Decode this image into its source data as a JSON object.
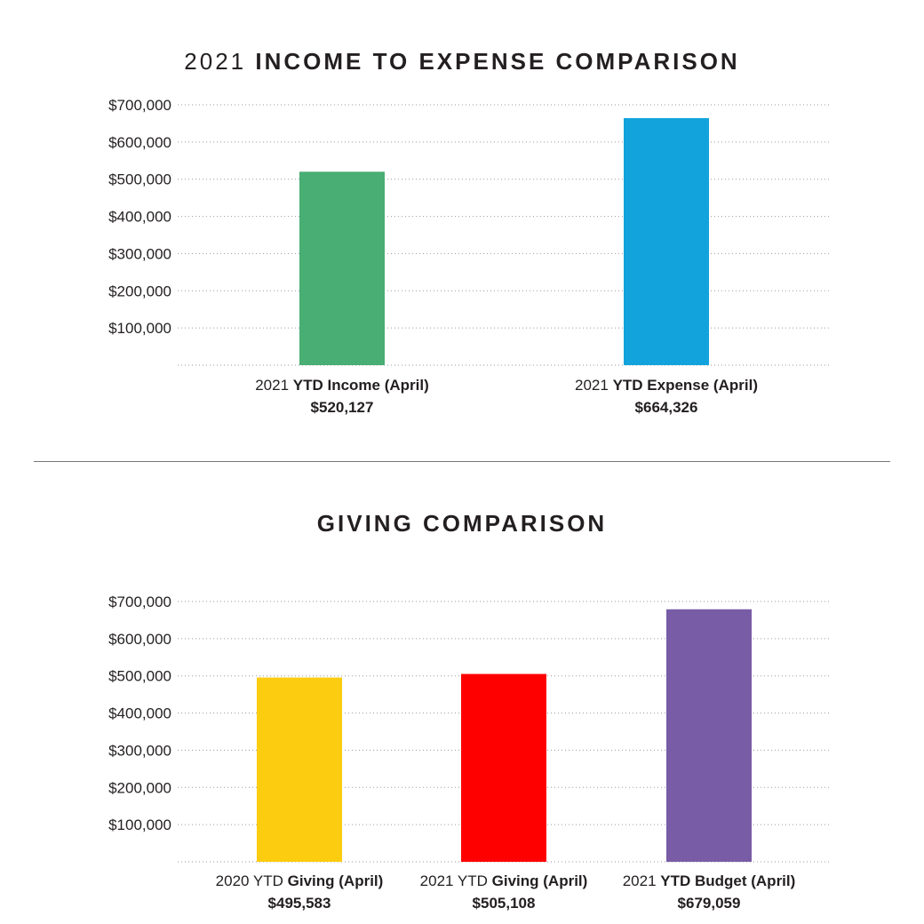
{
  "chart_data": [
    {
      "type": "bar",
      "title_prefix": "2021",
      "title_main": "INCOME TO EXPENSE COMPARISON",
      "ylim": [
        0,
        700000
      ],
      "yticks": [
        "$100,000",
        "$200,000",
        "$300,000",
        "$400,000",
        "$500,000",
        "$600,000",
        "$700,000"
      ],
      "ytick_values": [
        100000,
        200000,
        300000,
        400000,
        500000,
        600000,
        700000
      ],
      "grid": "dotted horizontal",
      "categories": [
        {
          "prefix": "2021",
          "label": "YTD Income (April)",
          "value_label": "$520,127"
        },
        {
          "prefix": "2021",
          "label": "YTD Expense (April)",
          "value_label": "$664,326"
        }
      ],
      "values": [
        520127,
        664326
      ],
      "colors": [
        "#48ae73",
        "#12a3dc"
      ]
    },
    {
      "type": "bar",
      "title_prefix": "",
      "title_main": "GIVING COMPARISON",
      "ylim": [
        0,
        700000
      ],
      "yticks": [
        "$100,000",
        "$200,000",
        "$300,000",
        "$400,000",
        "$500,000",
        "$600,000",
        "$700,000"
      ],
      "ytick_values": [
        100000,
        200000,
        300000,
        400000,
        500000,
        600000,
        700000
      ],
      "grid": "dotted horizontal",
      "categories": [
        {
          "prefix": "2020 YTD",
          "label": "Giving (April)",
          "value_label": "$495,583"
        },
        {
          "prefix": "2021 YTD",
          "label": "Giving (April)",
          "value_label": "$505,108"
        },
        {
          "prefix": "2021",
          "label": "YTD Budget (April)",
          "value_label": "$679,059"
        }
      ],
      "values": [
        495583,
        505108,
        679059
      ],
      "colors": [
        "#fbcc0f",
        "#ff0000",
        "#785ca6"
      ]
    }
  ]
}
